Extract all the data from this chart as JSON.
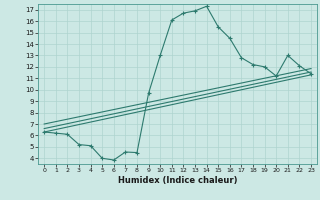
{
  "title": "",
  "xlabel": "Humidex (Indice chaleur)",
  "ylabel": "",
  "bg_color": "#cce8e4",
  "line_color": "#2d7a6e",
  "grid_color": "#afd4cf",
  "xlim": [
    -0.5,
    23.5
  ],
  "ylim": [
    3.5,
    17.5
  ],
  "xticks": [
    0,
    1,
    2,
    3,
    4,
    5,
    6,
    7,
    8,
    9,
    10,
    11,
    12,
    13,
    14,
    15,
    16,
    17,
    18,
    19,
    20,
    21,
    22,
    23
  ],
  "yticks": [
    4,
    5,
    6,
    7,
    8,
    9,
    10,
    11,
    12,
    13,
    14,
    15,
    16,
    17
  ],
  "main_x": [
    0,
    1,
    2,
    3,
    4,
    5,
    6,
    7,
    8,
    9,
    10,
    11,
    12,
    13,
    14,
    15,
    16,
    17,
    18,
    19,
    20,
    21,
    22,
    23
  ],
  "main_y": [
    6.3,
    6.2,
    6.1,
    5.2,
    5.1,
    4.0,
    3.85,
    4.55,
    4.5,
    9.7,
    13.0,
    16.1,
    16.7,
    16.9,
    17.3,
    15.5,
    14.5,
    12.8,
    12.2,
    12.0,
    11.2,
    13.0,
    12.1,
    11.4
  ],
  "trend1_x": [
    0,
    23
  ],
  "trend1_y": [
    6.3,
    11.3
  ],
  "trend2_x": [
    0,
    23
  ],
  "trend2_y": [
    6.6,
    11.55
  ],
  "trend3_x": [
    0,
    23
  ],
  "trend3_y": [
    7.0,
    11.85
  ]
}
